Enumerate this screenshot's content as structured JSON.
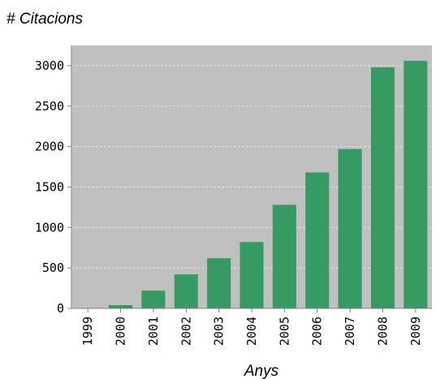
{
  "chart_data": {
    "type": "bar",
    "ylabel": "# Citacions",
    "xlabel": "Anys",
    "categories": [
      "1999",
      "2000",
      "2001",
      "2002",
      "2003",
      "2004",
      "2005",
      "2006",
      "2007",
      "2008",
      "2009"
    ],
    "values": [
      0,
      40,
      220,
      420,
      620,
      820,
      1280,
      1680,
      1970,
      2980,
      3060
    ],
    "yticks": [
      "0",
      "500",
      "1000",
      "1500",
      "2000",
      "2500",
      "3000"
    ],
    "ylim": [
      0,
      3250
    ],
    "grid": true,
    "colors": {
      "plot_background": "#c0c0c0",
      "bar": "#369a63",
      "grid": "#e4e4e4",
      "axis": "#808080"
    }
  }
}
